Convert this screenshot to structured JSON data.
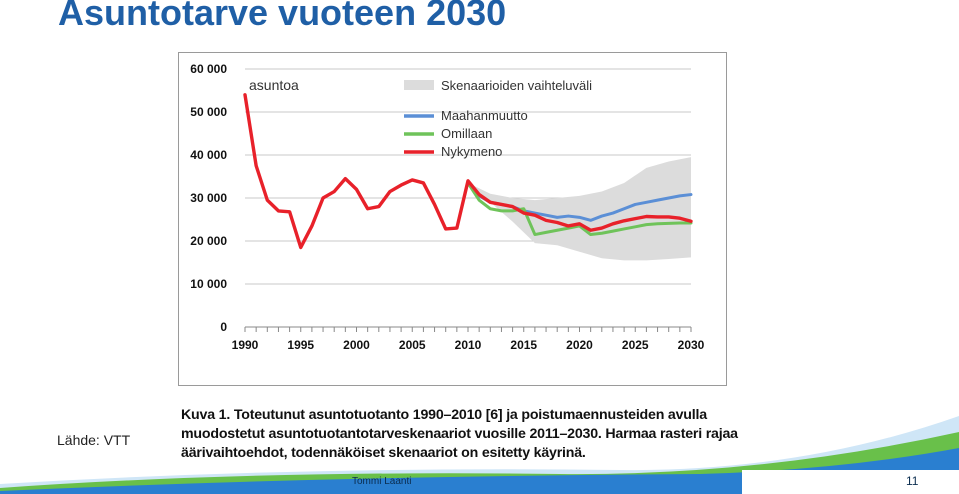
{
  "slide": {
    "title": "Asuntotarve vuoteen 2030",
    "source_label": "Lähde: VTT",
    "footer_author": "Tommi Laanti",
    "page_number": "11"
  },
  "caption": {
    "label": "Kuva 1.",
    "text": "Toteutunut asuntotuotanto 1990–2010 [6] ja poistumaennusteiden avulla muodostetut asuntotuotantotarveskenaariot vuosille 2011–2030. Harmaa rasteri rajaa äärivaihtoehdot, todennäköiset skenaariot on esitetty käyrinä."
  },
  "colors": {
    "title": "#1f5fa6",
    "maahanmuutto": "#5b8fd6",
    "omillaan": "#6fc35a",
    "nykymeno": "#e8212a",
    "band": "#dcdcdc"
  },
  "chart_data": {
    "type": "line",
    "annotation": "asuntoa",
    "x_ticks": [
      "1990",
      "1995",
      "2000",
      "2005",
      "2010",
      "2015",
      "2020",
      "2025",
      "2030"
    ],
    "y_ticks": [
      "0",
      "10 000",
      "20 000",
      "30 000",
      "40 000",
      "50 000",
      "60 000"
    ],
    "xlim": [
      1990,
      2030
    ],
    "ylim": [
      0,
      60000
    ],
    "band": {
      "name": "Skenaarioiden vaihteluväli",
      "x": [
        2010,
        2012,
        2014,
        2016,
        2018,
        2020,
        2022,
        2024,
        2026,
        2028,
        2030
      ],
      "upper": [
        33500,
        31000,
        30000,
        29500,
        30000,
        30500,
        31500,
        33500,
        37000,
        38500,
        39500
      ],
      "lower": [
        33500,
        29000,
        24500,
        19500,
        19000,
        17500,
        16000,
        15500,
        15500,
        15800,
        16200
      ]
    },
    "series": [
      {
        "name": "Maahanmuutto",
        "color": "#5b8fd6",
        "x": [
          2010,
          2011,
          2012,
          2013,
          2014,
          2015,
          2016,
          2017,
          2018,
          2019,
          2020,
          2021,
          2022,
          2023,
          2024,
          2025,
          2026,
          2027,
          2028,
          2029,
          2030
        ],
        "values": [
          33500,
          30500,
          29000,
          28500,
          28000,
          27000,
          26500,
          26000,
          25500,
          25800,
          25500,
          24800,
          25800,
          26500,
          27500,
          28500,
          29000,
          29500,
          30000,
          30500,
          30800
        ]
      },
      {
        "name": "Omillaan",
        "color": "#6fc35a",
        "x": [
          2010,
          2011,
          2012,
          2013,
          2014,
          2015,
          2016,
          2017,
          2018,
          2019,
          2020,
          2021,
          2022,
          2023,
          2024,
          2025,
          2026,
          2027,
          2028,
          2029,
          2030
        ],
        "values": [
          33500,
          29500,
          27500,
          27000,
          27000,
          27500,
          21500,
          22000,
          22500,
          23000,
          23500,
          21500,
          21800,
          22300,
          22800,
          23300,
          23800,
          24000,
          24100,
          24200,
          24200
        ]
      },
      {
        "name": "Nykymeno",
        "color": "#e8212a",
        "x": [
          1990,
          1991,
          1992,
          1993,
          1994,
          1995,
          1996,
          1997,
          1998,
          1999,
          2000,
          2001,
          2002,
          2003,
          2004,
          2005,
          2006,
          2007,
          2008,
          2009,
          2010,
          2011,
          2012,
          2013,
          2014,
          2015,
          2016,
          2017,
          2018,
          2019,
          2020,
          2021,
          2022,
          2023,
          2024,
          2025,
          2026,
          2027,
          2028,
          2029,
          2030
        ],
        "values": [
          54000,
          37500,
          29500,
          27000,
          26800,
          18500,
          23500,
          30000,
          31500,
          34500,
          32000,
          27500,
          28000,
          31500,
          33000,
          34200,
          33500,
          28500,
          22800,
          23000,
          34000,
          30800,
          29000,
          28500,
          28000,
          26500,
          26000,
          24800,
          24300,
          23500,
          24000,
          22500,
          23000,
          24000,
          24700,
          25200,
          25700,
          25600,
          25600,
          25300,
          24600
        ]
      }
    ]
  }
}
